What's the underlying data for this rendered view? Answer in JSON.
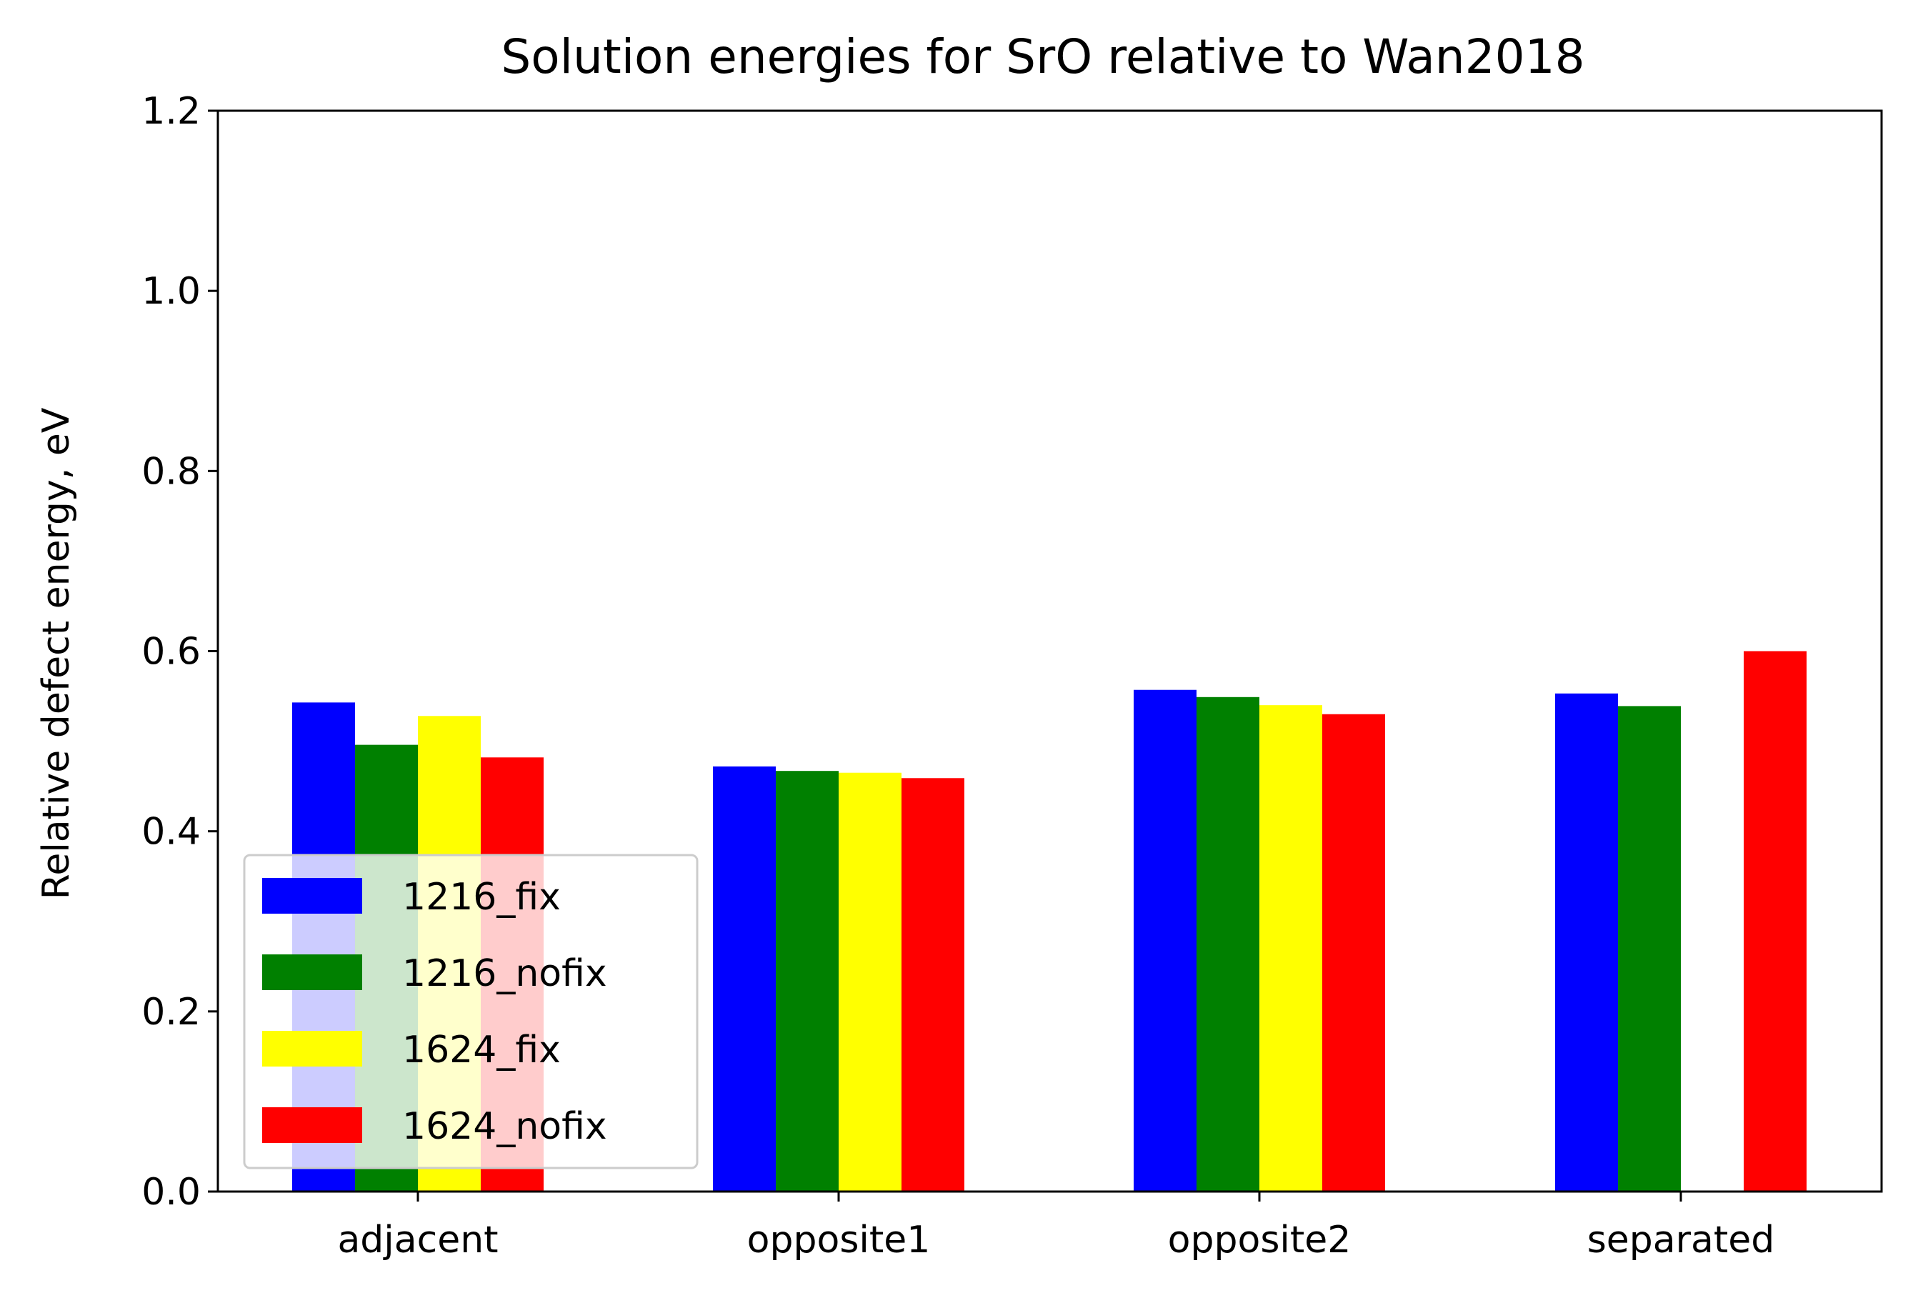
{
  "chart_data": {
    "type": "bar",
    "title": "Solution energies for SrO relative to Wan2018",
    "xlabel": "",
    "ylabel": "Relative defect energy, eV",
    "categories": [
      "adjacent",
      "opposite1",
      "opposite2",
      "separated"
    ],
    "ylim": [
      0,
      1.2
    ],
    "yticks": [
      "0.0",
      "0.2",
      "0.4",
      "0.6",
      "0.8",
      "1.0",
      "1.2"
    ],
    "grid": false,
    "legend_position": "lower-left",
    "series": [
      {
        "name": "1216_fix",
        "color": "#0000ff",
        "values": [
          0.543,
          0.472,
          0.557,
          0.553
        ]
      },
      {
        "name": "1216_nofix",
        "color": "#008000",
        "values": [
          0.496,
          0.467,
          0.549,
          0.539
        ]
      },
      {
        "name": "1624_fix",
        "color": "#ffff00",
        "values": [
          0.528,
          0.465,
          0.54,
          null
        ]
      },
      {
        "name": "1624_nofix",
        "color": "#ff0000",
        "values": [
          0.482,
          0.459,
          0.53,
          0.6
        ]
      }
    ]
  }
}
